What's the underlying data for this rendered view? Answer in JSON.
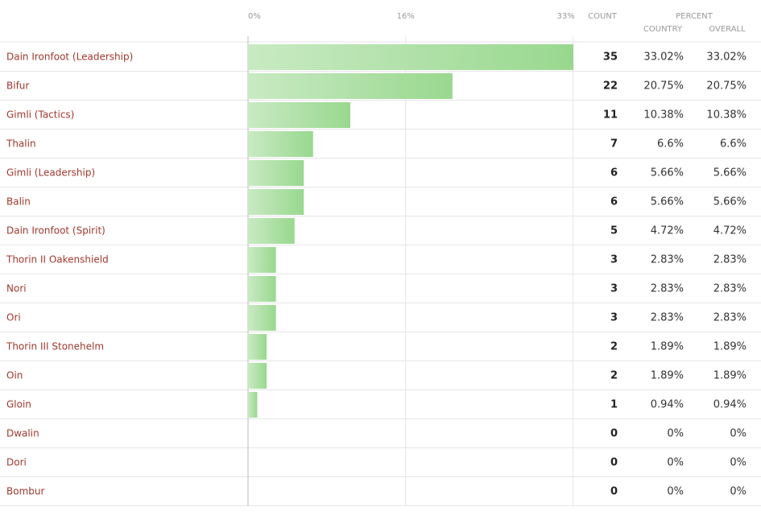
{
  "chart_data": {
    "type": "bar",
    "orientation": "horizontal",
    "count_header": "COUNT",
    "percent_header": "PERCENT",
    "country_header": "COUNTRY",
    "overall_header": "OVERALL",
    "categories": [
      "Dain Ironfoot (Leadership)",
      "Bifur",
      "Gimli (Tactics)",
      "Thalin",
      "Gimli (Leadership)",
      "Balin",
      "Dain Ironfoot (Spirit)",
      "Thorin II Oakenshield",
      "Nori",
      "Ori",
      "Thorin III Stonehelm",
      "Oin",
      "Gloin",
      "Dwalin",
      "Dori",
      "Bombur"
    ],
    "counts": [
      35,
      22,
      11,
      7,
      6,
      6,
      5,
      3,
      3,
      3,
      2,
      2,
      1,
      0,
      0,
      0
    ],
    "values": [
      33.02,
      20.75,
      10.38,
      6.6,
      5.66,
      5.66,
      4.72,
      2.83,
      2.83,
      2.83,
      1.89,
      1.89,
      0.94,
      0,
      0,
      0
    ],
    "value_labels": [
      "33.02%",
      "20.75%",
      "10.38%",
      "6.6%",
      "5.66%",
      "5.66%",
      "4.72%",
      "2.83%",
      "2.83%",
      "2.83%",
      "1.89%",
      "1.89%",
      "0.94%",
      "0%",
      "0%",
      "0%"
    ],
    "overall_values": [
      33.02,
      20.75,
      10.38,
      6.6,
      5.66,
      5.66,
      4.72,
      2.83,
      2.83,
      2.83,
      1.89,
      1.89,
      0.94,
      0,
      0,
      0
    ],
    "overall_labels": [
      "33.02%",
      "20.75%",
      "10.38%",
      "6.6%",
      "5.66%",
      "5.66%",
      "4.72%",
      "2.83%",
      "2.83%",
      "2.83%",
      "1.89%",
      "1.89%",
      "0.94%",
      "0%",
      "0%",
      "0%"
    ],
    "color": "#a8dea0",
    "xlim": [
      0,
      33.02
    ],
    "xticks": [
      {
        "value": 0,
        "label": "0%"
      },
      {
        "value": 16,
        "label": "16%"
      },
      {
        "value": 33,
        "label": "33%"
      }
    ],
    "grid": true
  }
}
